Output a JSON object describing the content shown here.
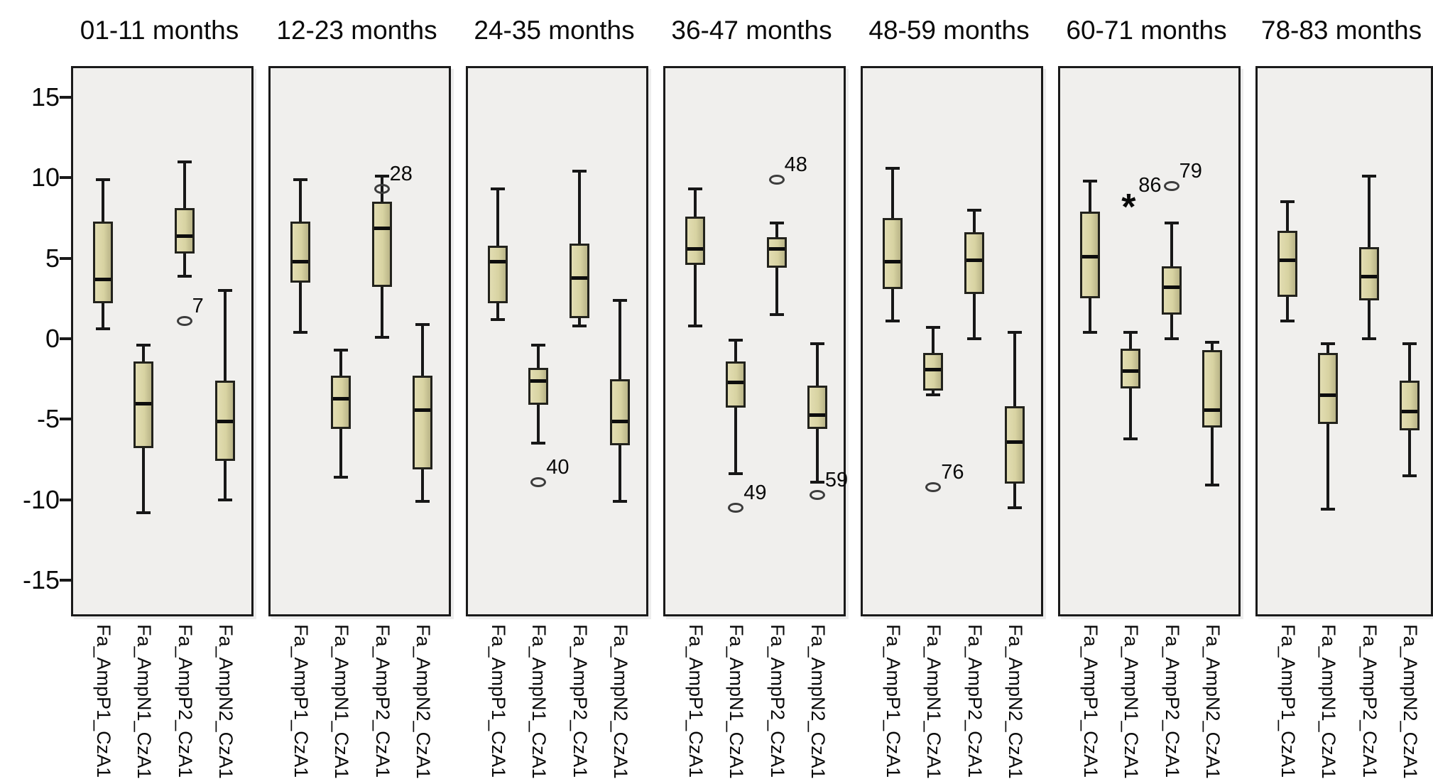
{
  "colors": {
    "background": "#ffffff",
    "panel_background": "#f0efed",
    "panel_border": "#1a1a1a",
    "box_fill": "#d8d3a2",
    "box_border": "#22221c",
    "line": "#171717",
    "outlier_stroke": "#3c3c3c",
    "text": "#000000"
  },
  "chart_data": {
    "type": "boxplot",
    "title": "",
    "xlabel": "",
    "ylabel": "",
    "ylim": [
      -17,
      17
    ],
    "grid": false,
    "legend": "none",
    "yticks": [
      {
        "value": 15,
        "label": "15"
      },
      {
        "value": 10,
        "label": "10"
      },
      {
        "value": 5,
        "label": "5"
      },
      {
        "value": 0,
        "label": "0"
      },
      {
        "value": -5,
        "label": "-5"
      },
      {
        "value": -10,
        "label": "-10"
      },
      {
        "value": -15,
        "label": "-15"
      }
    ],
    "categories": [
      "Fa_AmpP1_CzA1",
      "Fa_AmpN1_CzA1",
      "Fa_AmpP2_CzA1",
      "Fa_AmpN2_CzA1"
    ],
    "panels": [
      {
        "title": "01-11 months",
        "boxes": [
          {
            "category": "Fa_AmpP1_CzA1",
            "whisker_low": 0.6,
            "q1": 2.2,
            "median": 3.7,
            "q3": 7.3,
            "whisker_high": 9.9,
            "outliers": []
          },
          {
            "category": "Fa_AmpN1_CzA1",
            "whisker_low": -10.8,
            "q1": -6.8,
            "median": -4.0,
            "q3": -1.4,
            "whisker_high": -0.4,
            "outliers": []
          },
          {
            "category": "Fa_AmpP2_CzA1",
            "whisker_low": 3.9,
            "q1": 5.3,
            "median": 6.4,
            "q3": 8.1,
            "whisker_high": 11.0,
            "outliers": [
              {
                "value": 1.1,
                "label": "7",
                "marker": "circle"
              }
            ]
          },
          {
            "category": "Fa_AmpN2_CzA1",
            "whisker_low": -10.0,
            "q1": -7.6,
            "median": -5.1,
            "q3": -2.6,
            "whisker_high": 3.0,
            "outliers": []
          }
        ]
      },
      {
        "title": "12-23 months",
        "boxes": [
          {
            "category": "Fa_AmpP1_CzA1",
            "whisker_low": 0.4,
            "q1": 3.5,
            "median": 4.8,
            "q3": 7.3,
            "whisker_high": 9.9,
            "outliers": []
          },
          {
            "category": "Fa_AmpN1_CzA1",
            "whisker_low": -8.6,
            "q1": -5.6,
            "median": -3.7,
            "q3": -2.3,
            "whisker_high": -0.7,
            "outliers": []
          },
          {
            "category": "Fa_AmpP2_CzA1",
            "whisker_low": 0.1,
            "q1": 3.2,
            "median": 6.9,
            "q3": 8.5,
            "whisker_high": 10.1,
            "outliers": [
              {
                "value": 9.3,
                "label": "28",
                "marker": "circle"
              }
            ]
          },
          {
            "category": "Fa_AmpN2_CzA1",
            "whisker_low": -10.1,
            "q1": -8.1,
            "median": -4.4,
            "q3": -2.3,
            "whisker_high": 0.9,
            "outliers": []
          }
        ]
      },
      {
        "title": "24-35 months",
        "boxes": [
          {
            "category": "Fa_AmpP1_CzA1",
            "whisker_low": 1.2,
            "q1": 2.2,
            "median": 4.8,
            "q3": 5.8,
            "whisker_high": 9.3,
            "outliers": []
          },
          {
            "category": "Fa_AmpN1_CzA1",
            "whisker_low": -6.5,
            "q1": -4.1,
            "median": -2.6,
            "q3": -1.8,
            "whisker_high": -0.4,
            "outliers": [
              {
                "value": -8.9,
                "label": "40",
                "marker": "circle"
              }
            ]
          },
          {
            "category": "Fa_AmpP2_CzA1",
            "whisker_low": 0.8,
            "q1": 1.3,
            "median": 3.8,
            "q3": 5.9,
            "whisker_high": 10.4,
            "outliers": []
          },
          {
            "category": "Fa_AmpN2_CzA1",
            "whisker_low": -10.1,
            "q1": -6.6,
            "median": -5.1,
            "q3": -2.5,
            "whisker_high": 2.4,
            "outliers": []
          }
        ]
      },
      {
        "title": "36-47 months",
        "boxes": [
          {
            "category": "Fa_AmpP1_CzA1",
            "whisker_low": 0.8,
            "q1": 4.6,
            "median": 5.6,
            "q3": 7.6,
            "whisker_high": 9.3,
            "outliers": []
          },
          {
            "category": "Fa_AmpN1_CzA1",
            "whisker_low": -8.4,
            "q1": -4.3,
            "median": -2.7,
            "q3": -1.4,
            "whisker_high": -0.1,
            "outliers": [
              {
                "value": -10.5,
                "label": "49",
                "marker": "circle"
              }
            ]
          },
          {
            "category": "Fa_AmpP2_CzA1",
            "whisker_low": 1.5,
            "q1": 4.4,
            "median": 5.6,
            "q3": 6.3,
            "whisker_high": 7.2,
            "outliers": [
              {
                "value": 9.9,
                "label": "48",
                "marker": "circle"
              }
            ]
          },
          {
            "category": "Fa_AmpN2_CzA1",
            "whisker_low": -8.9,
            "q1": -5.6,
            "median": -4.7,
            "q3": -2.9,
            "whisker_high": -0.3,
            "outliers": [
              {
                "value": -9.7,
                "label": "59",
                "marker": "circle"
              }
            ]
          }
        ]
      },
      {
        "title": "48-59 months",
        "boxes": [
          {
            "category": "Fa_AmpP1_CzA1",
            "whisker_low": 1.1,
            "q1": 3.1,
            "median": 4.8,
            "q3": 7.5,
            "whisker_high": 10.6,
            "outliers": []
          },
          {
            "category": "Fa_AmpN1_CzA1",
            "whisker_low": -3.5,
            "q1": -3.2,
            "median": -1.9,
            "q3": -0.9,
            "whisker_high": 0.7,
            "outliers": [
              {
                "value": -9.2,
                "label": "76",
                "marker": "circle"
              }
            ]
          },
          {
            "category": "Fa_AmpP2_CzA1",
            "whisker_low": 0.0,
            "q1": 2.8,
            "median": 4.9,
            "q3": 6.6,
            "whisker_high": 8.0,
            "outliers": []
          },
          {
            "category": "Fa_AmpN2_CzA1",
            "whisker_low": -10.5,
            "q1": -9.0,
            "median": -6.4,
            "q3": -4.2,
            "whisker_high": 0.4,
            "outliers": []
          }
        ]
      },
      {
        "title": "60-71 months",
        "boxes": [
          {
            "category": "Fa_AmpP1_CzA1",
            "whisker_low": 0.4,
            "q1": 2.5,
            "median": 5.1,
            "q3": 7.9,
            "whisker_high": 9.8,
            "outliers": []
          },
          {
            "category": "Fa_AmpN1_CzA1",
            "whisker_low": -6.2,
            "q1": -3.1,
            "median": -2.0,
            "q3": -0.6,
            "whisker_high": 0.4,
            "outliers": [
              {
                "value": 8.6,
                "label": "86",
                "marker": "asterisk"
              }
            ]
          },
          {
            "category": "Fa_AmpP2_CzA1",
            "whisker_low": 0.0,
            "q1": 1.5,
            "median": 3.2,
            "q3": 4.5,
            "whisker_high": 7.2,
            "outliers": [
              {
                "value": 9.5,
                "label": "79",
                "marker": "circle"
              }
            ]
          },
          {
            "category": "Fa_AmpN2_CzA1",
            "whisker_low": -9.1,
            "q1": -5.5,
            "median": -4.4,
            "q3": -0.7,
            "whisker_high": -0.2,
            "outliers": []
          }
        ]
      },
      {
        "title": "78-83 months",
        "boxes": [
          {
            "category": "Fa_AmpP1_CzA1",
            "whisker_low": 1.1,
            "q1": 2.6,
            "median": 4.9,
            "q3": 6.7,
            "whisker_high": 8.5,
            "outliers": []
          },
          {
            "category": "Fa_AmpN1_CzA1",
            "whisker_low": -10.6,
            "q1": -5.3,
            "median": -3.5,
            "q3": -0.9,
            "whisker_high": -0.3,
            "outliers": []
          },
          {
            "category": "Fa_AmpP2_CzA1",
            "whisker_low": 0.0,
            "q1": 2.4,
            "median": 3.9,
            "q3": 5.7,
            "whisker_high": 10.1,
            "outliers": []
          },
          {
            "category": "Fa_AmpN2_CzA1",
            "whisker_low": -8.5,
            "q1": -5.7,
            "median": -4.5,
            "q3": -2.6,
            "whisker_high": -0.3,
            "outliers": []
          }
        ]
      }
    ],
    "marker_glyphs": {
      "asterisk": "*"
    }
  }
}
